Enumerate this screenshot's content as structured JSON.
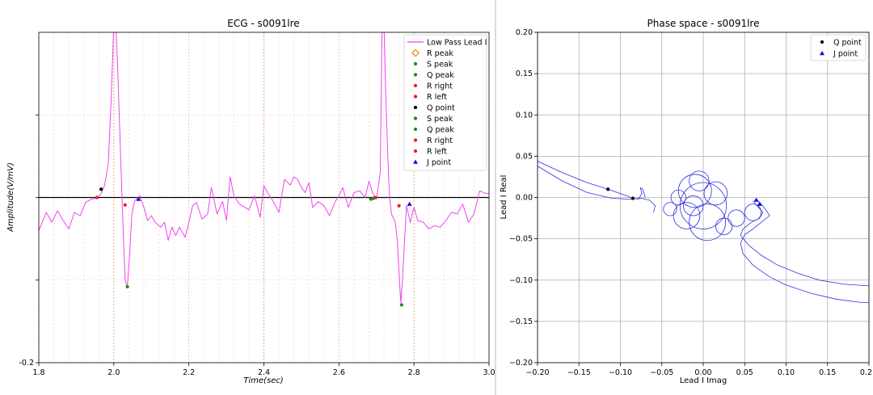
{
  "chart_data": [
    {
      "type": "line",
      "title": "ECG - s0091lre",
      "xlabel": "Time(sec)",
      "ylabel": "Amplitude(V/mV)",
      "xlim": [
        1.8,
        3.0
      ],
      "ylim": [
        -0.2,
        0.2
      ],
      "x_ticks": [
        "1.8",
        "2.0",
        "2.2",
        "2.4",
        "2.6",
        "2.8",
        "3.0"
      ],
      "x_tick_values": [
        1.8,
        2.0,
        2.2,
        2.4,
        2.6,
        2.8,
        3.0
      ],
      "y_ticks": [
        "-0.2"
      ],
      "y_tick_values": [
        -0.2
      ],
      "grid": true,
      "legend_position": "top-right",
      "colors": {
        "signal": "#ee44ee",
        "baseline": "#000000",
        "grid_major": "#f0a8a8",
        "grid_minor": "#f8d0d0",
        "grid_center": "#d0a060"
      },
      "series": [
        {
          "name": "Low Pass Lead I",
          "x": [
            1.8,
            1.82,
            1.835,
            1.85,
            1.865,
            1.88,
            1.895,
            1.91,
            1.925,
            1.94,
            1.955,
            1.965,
            1.975,
            1.985,
            1.993,
            2.0,
            2.005,
            2.01,
            2.018,
            2.025,
            2.03,
            2.036,
            2.042,
            2.048,
            2.055,
            2.062,
            2.07,
            2.08,
            2.09,
            2.1,
            2.11,
            2.125,
            2.135,
            2.145,
            2.155,
            2.165,
            2.175,
            2.19,
            2.2,
            2.21,
            2.22,
            2.235,
            2.25,
            2.26,
            2.275,
            2.29,
            2.3,
            2.31,
            2.32,
            2.335,
            2.35,
            2.36,
            2.375,
            2.39,
            2.4,
            2.41,
            2.425,
            2.44,
            2.455,
            2.47,
            2.48,
            2.49,
            2.5,
            2.51,
            2.52,
            2.53,
            2.545,
            2.56,
            2.575,
            2.59,
            2.6,
            2.61,
            2.625,
            2.64,
            2.655,
            2.67,
            2.68,
            2.69,
            2.7,
            2.71,
            2.715,
            2.72,
            2.725,
            2.73,
            2.735,
            2.74,
            2.75,
            2.755,
            2.76,
            2.765,
            2.77,
            2.775,
            2.78,
            2.79,
            2.8,
            2.81,
            2.825,
            2.84,
            2.855,
            2.87,
            2.885,
            2.9,
            2.915,
            2.93,
            2.945,
            2.96,
            2.975,
            2.99,
            3.0
          ],
          "y": [
            -0.04,
            -0.018,
            -0.03,
            -0.016,
            -0.028,
            -0.038,
            -0.018,
            -0.022,
            -0.006,
            -0.002,
            -0.001,
            0.004,
            0.014,
            0.04,
            0.12,
            0.21,
            0.21,
            0.16,
            0.05,
            -0.04,
            -0.1,
            -0.108,
            -0.07,
            -0.02,
            -0.005,
            -0.001,
            0.002,
            -0.012,
            -0.028,
            -0.022,
            -0.03,
            -0.036,
            -0.03,
            -0.052,
            -0.036,
            -0.046,
            -0.036,
            -0.048,
            -0.03,
            -0.01,
            -0.006,
            -0.026,
            -0.02,
            0.012,
            -0.02,
            -0.005,
            -0.028,
            0.025,
            0.002,
            -0.008,
            -0.012,
            -0.015,
            0.002,
            -0.024,
            0.014,
            0.006,
            -0.005,
            -0.018,
            0.022,
            0.015,
            0.025,
            0.022,
            0.012,
            0.006,
            0.018,
            -0.012,
            -0.005,
            -0.01,
            -0.022,
            -0.005,
            0.002,
            0.012,
            -0.012,
            0.006,
            0.008,
            0.0,
            0.02,
            0.005,
            -0.002,
            0.03,
            0.21,
            0.21,
            0.12,
            0.05,
            0.0,
            -0.02,
            -0.03,
            -0.05,
            -0.09,
            -0.128,
            -0.095,
            -0.05,
            -0.01,
            -0.03,
            -0.012,
            -0.028,
            -0.03,
            -0.038,
            -0.034,
            -0.036,
            -0.028,
            -0.018,
            -0.02,
            -0.008,
            -0.03,
            -0.02,
            0.008,
            0.005,
            0.005
          ]
        }
      ],
      "markers": [
        {
          "name": "R peak",
          "shape": "diamond",
          "color": "#e8a020",
          "points": []
        },
        {
          "name": "S peak",
          "shape": "dot",
          "color": "#1a8a1a",
          "points": []
        },
        {
          "name": "Q peak",
          "shape": "dot",
          "color": "#1a8a1a",
          "points": []
        },
        {
          "name": "R right",
          "shape": "dot",
          "color": "#e82020",
          "points": []
        },
        {
          "name": "R left",
          "shape": "dot",
          "color": "#e82020",
          "points": []
        },
        {
          "name": "Q point",
          "shape": "dot",
          "color": "#000000",
          "points": [
            [
              1.966,
              0.01
            ]
          ]
        },
        {
          "name": "S peak",
          "shape": "dot",
          "color": "#1a8a1a",
          "points": [
            [
              2.036,
              -0.108
            ],
            [
              2.767,
              -0.13
            ]
          ]
        },
        {
          "name": "Q peak",
          "shape": "dot",
          "color": "#1a8a1a",
          "points": [
            [
              2.685,
              -0.002
            ],
            [
              2.692,
              -0.001
            ]
          ]
        },
        {
          "name": "R right",
          "shape": "dot",
          "color": "#e82020",
          "points": [
            [
              2.03,
              -0.009
            ],
            [
              2.76,
              -0.01
            ]
          ]
        },
        {
          "name": "R left",
          "shape": "dot",
          "color": "#e82020",
          "points": [
            [
              1.955,
              0.0
            ],
            [
              2.697,
              0.0
            ]
          ]
        },
        {
          "name": "J point",
          "shape": "triangle",
          "color": "#1010d0",
          "points": [
            [
              2.066,
              -0.002
            ],
            [
              2.788,
              -0.008
            ]
          ]
        }
      ]
    },
    {
      "type": "line",
      "title": "Phase space - s0091lre",
      "xlabel": "Lead I Imag",
      "ylabel": "Lead I Real",
      "xlim": [
        -0.2,
        0.2
      ],
      "ylim": [
        -0.2,
        0.2
      ],
      "x_ticks": [
        "−0.20",
        "−0.15",
        "−0.10",
        "−0.05",
        "0.00",
        "0.05",
        "0.10",
        "0.15",
        "0.2"
      ],
      "x_tick_values": [
        -0.2,
        -0.15,
        -0.1,
        -0.05,
        0.0,
        0.05,
        0.1,
        0.15,
        0.2
      ],
      "y_ticks": [
        "−0.20",
        "−0.15",
        "−0.10",
        "−0.05",
        "0.00",
        "0.05",
        "0.10",
        "0.15",
        "0.20"
      ],
      "y_tick_values": [
        -0.2,
        -0.15,
        -0.1,
        -0.05,
        0.0,
        0.05,
        0.1,
        0.15,
        0.2
      ],
      "grid": true,
      "legend_position": "top-right",
      "colors": {
        "trajectory": "#3030e0",
        "grid": "#b0b0b0"
      },
      "series": [
        {
          "name": "",
          "x": [
            -0.2,
            -0.17,
            -0.14,
            -0.115,
            -0.095,
            -0.085,
            -0.078,
            -0.074,
            -0.076,
            -0.073,
            -0.07
          ],
          "y": [
            0.044,
            0.03,
            0.018,
            0.01,
            0.003,
            -0.001,
            -0.002,
            0.005,
            0.012,
            0.01,
            0.0
          ]
        },
        {
          "name": "",
          "x": [
            -0.2,
            -0.17,
            -0.14,
            -0.11,
            -0.09,
            -0.075,
            -0.065,
            -0.058,
            -0.06
          ],
          "y": [
            0.038,
            0.02,
            0.006,
            -0.001,
            -0.002,
            -0.001,
            -0.003,
            -0.01,
            -0.018
          ]
        },
        {
          "name": "",
          "x": [
            0.065,
            0.07,
            0.075,
            0.08,
            0.07,
            0.06,
            0.05,
            0.045,
            0.048,
            0.06,
            0.08,
            0.1,
            0.13,
            0.16,
            0.19,
            0.2
          ],
          "y": [
            -0.003,
            -0.008,
            -0.014,
            -0.022,
            -0.03,
            -0.038,
            -0.045,
            -0.055,
            -0.068,
            -0.082,
            -0.096,
            -0.106,
            -0.116,
            -0.123,
            -0.127,
            -0.127
          ]
        },
        {
          "name": "",
          "x": [
            0.06,
            0.065,
            0.072,
            0.068,
            0.058,
            0.048,
            0.045,
            0.055,
            0.07,
            0.09,
            0.115,
            0.14,
            0.17,
            0.2
          ],
          "y": [
            -0.004,
            -0.01,
            -0.018,
            -0.025,
            -0.03,
            -0.038,
            -0.046,
            -0.058,
            -0.07,
            -0.082,
            -0.092,
            -0.1,
            -0.105,
            -0.107
          ]
        }
      ],
      "loops": [
        {
          "cx": -0.01,
          "cy": 0.008,
          "r": 0.02
        },
        {
          "cx": 0.0,
          "cy": -0.01,
          "r": 0.028
        },
        {
          "cx": -0.02,
          "cy": -0.022,
          "r": 0.016
        },
        {
          "cx": 0.015,
          "cy": 0.005,
          "r": 0.014
        },
        {
          "cx": 0.005,
          "cy": -0.03,
          "r": 0.022
        },
        {
          "cx": -0.03,
          "cy": 0.0,
          "r": 0.009
        },
        {
          "cx": 0.025,
          "cy": -0.035,
          "r": 0.01
        },
        {
          "cx": -0.005,
          "cy": 0.02,
          "r": 0.012
        },
        {
          "cx": -0.012,
          "cy": -0.01,
          "r": 0.012
        },
        {
          "cx": 0.04,
          "cy": -0.025,
          "r": 0.01
        },
        {
          "cx": 0.06,
          "cy": -0.018,
          "r": 0.01
        },
        {
          "cx": -0.04,
          "cy": -0.014,
          "r": 0.008
        }
      ],
      "markers": [
        {
          "name": "Q point",
          "shape": "dot",
          "color": "#000000",
          "points": [
            [
              -0.115,
              0.01
            ],
            [
              -0.085,
              -0.001
            ]
          ]
        },
        {
          "name": "J point",
          "shape": "triangle",
          "color": "#1010d0",
          "points": [
            [
              0.064,
              -0.003
            ],
            [
              0.068,
              -0.008
            ]
          ]
        }
      ]
    }
  ]
}
